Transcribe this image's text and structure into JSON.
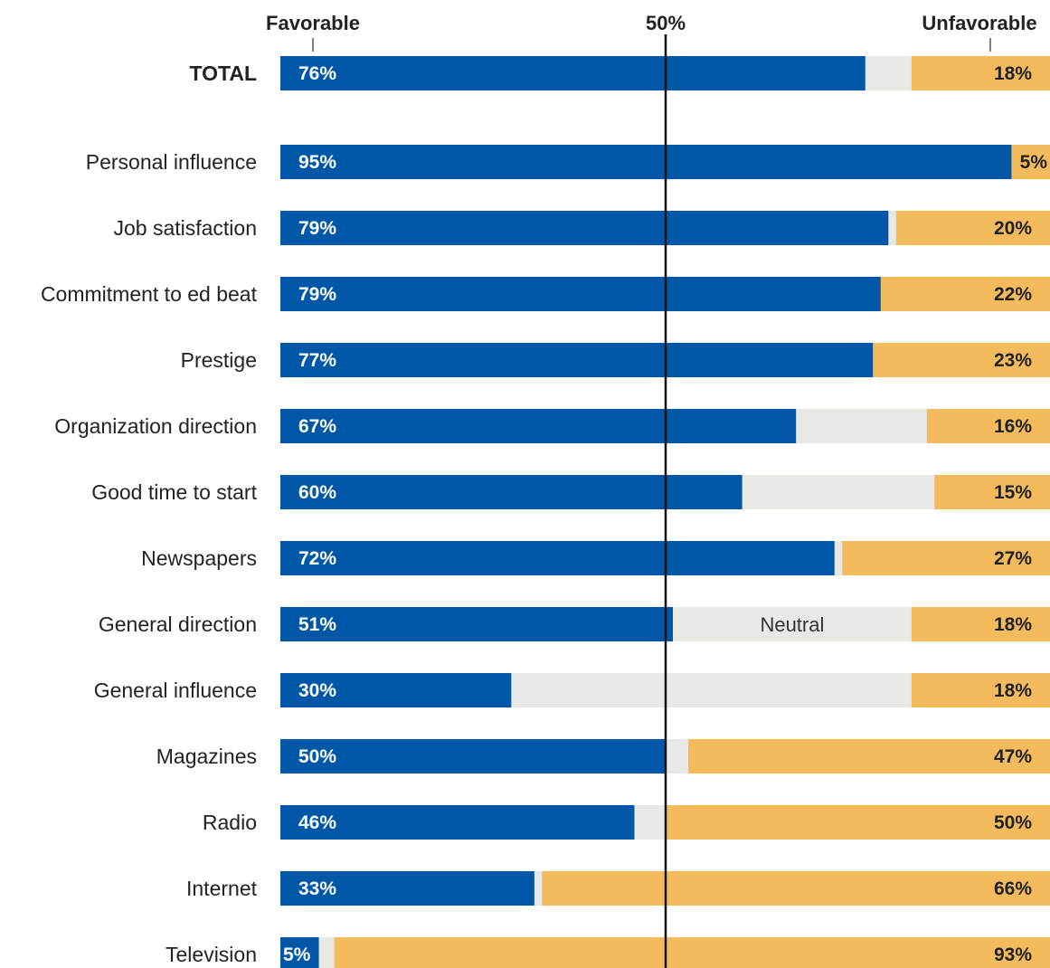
{
  "chart_data": {
    "type": "bar",
    "orientation": "horizontal",
    "stacked": true,
    "headers": {
      "left": "Favorable",
      "center": "50%",
      "right": "Unfavorable"
    },
    "neutral_label": "Neutral",
    "categories": [
      "TOTAL",
      "Personal influence",
      "Job satisfaction",
      "Commitment to ed beat",
      "Prestige",
      "Organization direction",
      "Good time to start",
      "Newspapers",
      "General direction",
      "General influence",
      "Magazines",
      "Radio",
      "Internet",
      "Television"
    ],
    "series": [
      {
        "name": "Favorable",
        "values": [
          76,
          95,
          79,
          79,
          77,
          67,
          60,
          72,
          51,
          30,
          50,
          46,
          33,
          5
        ]
      },
      {
        "name": "Neutral",
        "values": [
          6,
          0,
          1,
          -1,
          0,
          17,
          25,
          1,
          31,
          52,
          3,
          4,
          1,
          2
        ]
      },
      {
        "name": "Unfavorable",
        "values": [
          18,
          5,
          20,
          22,
          23,
          16,
          15,
          27,
          18,
          18,
          47,
          50,
          66,
          93
        ]
      }
    ],
    "value_labels": {
      "favorable": [
        "76%",
        "95%",
        "79%",
        "79%",
        "77%",
        "67%",
        "60%",
        "72%",
        "51%",
        "30%",
        "50%",
        "46%",
        "33%",
        "5%"
      ],
      "unfavorable": [
        "18%",
        "5%",
        "20%",
        "22%",
        "23%",
        "16%",
        "15%",
        "27%",
        "18%",
        "18%",
        "47%",
        "50%",
        "66%",
        "93%"
      ]
    },
    "xlim": [
      0,
      100
    ],
    "reference_line": 50,
    "colors": {
      "Favorable": "#0057a8",
      "Neutral": "#e8e8e4",
      "Unfavorable": "#f4bb5c",
      "favorable_label": "#ffffff",
      "unfavorable_label": "#222222",
      "reference_line": "#111111"
    }
  }
}
